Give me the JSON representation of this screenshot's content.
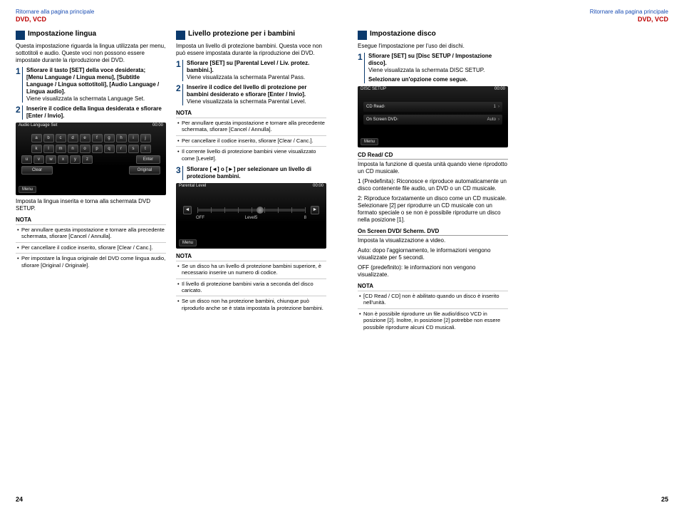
{
  "header": {
    "link": "Ritornare alla pagina principale",
    "category": "DVD, VCD"
  },
  "pagenum_left": "24",
  "pagenum_right": "25",
  "left": {
    "colA": {
      "title": "Impostazione lingua",
      "intro": "Questa impostazione riguarda la lingua utilizzata per menu, sottotitoli e audio. Queste voci non possono essere impostate durante la riproduzione dei DVD.",
      "step1": "Sfiorare il tasto [SET] della voce desiderata;\n[Menu Language / Lingua menu], [Subtitle Language / Lingua sottotitoli], [Audio Language / Lingua audio].",
      "step1b": "Viene visualizzata la schermata Language Set.",
      "step2": "Inserire il codice della lingua desiderata e sfiorare [Enter / Invio].",
      "kbd_title": "Audio Language Set",
      "clock": "00:00",
      "kbd_rows": [
        [
          "a",
          "b",
          "c",
          "d",
          "e",
          "f",
          "g",
          "h",
          "i",
          "j"
        ],
        [
          "k",
          "l",
          "m",
          "n",
          "o",
          "p",
          "q",
          "r",
          "s",
          "t"
        ],
        [
          "u",
          "v",
          "w",
          "x",
          "y",
          "z"
        ]
      ],
      "kbd_enter": "Enter",
      "kbd_clear": "Clear",
      "kbd_orig": "Original",
      "menu": "Menu",
      "after": "Imposta la lingua inserita e torna alla schermata DVD SETUP.",
      "nota": [
        "Per annullare questa impostazione e tornare alla precedente schermata, sfiorare [Cancel / Annulla].",
        "Per cancellare il codice inserito, sfiorare [Clear / Canc.].",
        "Per impostare la lingua originale del DVD come lingua audio, sfiorare [Original / Originale]."
      ]
    },
    "colB": {
      "title": "Livello protezione per i bambini",
      "intro": "Imposta un livello di protezione bambini. Questa voce non può essere impostata durante la riproduzione dei DVD.",
      "step1": "Sfiorare [SET] su [Parental Level / Liv. protez. bambini.].",
      "step1b": "Viene visualizzata la schermata Parental Pass.",
      "step2": "Inserire il codice del livello di protezione per bambini desiderato e sfiorare [Enter / Invio].",
      "step2b": "Viene visualizzata la schermata Parental Level.",
      "nota1": [
        "Per annullare questa impostazione e tornare alla precedente schermata, sfiorare [Cancel / Annulla].",
        "Per cancellare il codice inserito, sfiorare [Clear / Canc.].",
        "Il corrente livello di protezione bambini viene visualizzato come [Level#]."
      ],
      "step3": "Sfiorare [◄] o [►] per selezionare un livello di protezione bambini.",
      "pl_title": "Parental Level",
      "pl_min": "OFF",
      "pl_val": "Level5",
      "pl_max": "8",
      "nota2": [
        "Se un disco ha un livello di protezione bambini superiore, è necessario inserire un numero di codice.",
        "Il livello di protezione bambini varia a seconda del disco caricato.",
        "Se un disco non ha protezione bambini, chiunque può riprodurlo anche se è stata impostata la protezione bambini."
      ]
    }
  },
  "right": {
    "title": "Impostazione disco",
    "intro": "Esegue l'impostazione per l'uso dei dischi.",
    "step1": "Sfiorare [SET] su [Disc SETUP / Impostazione disco].",
    "step1b": "Viene visualizzata la schermata DISC SETUP.",
    "step1c": "Selezionare un'opzione come segue.",
    "shot_title": "DISC SETUP",
    "clock": "00:00",
    "row1": "CD Read",
    "row1v": "1",
    "row2": "On Screen DVD",
    "row2v": "Auto",
    "menu": "Menu",
    "sub1_title": "CD Read/ CD",
    "sub1_body": "Imposta la funzione di questa unità quando viene riprodotto un CD musicale.",
    "sub1_1": "1 (Predefinita): Riconosce e riproduce automaticamente un disco contenente file audio, un DVD o un CD musicale.",
    "sub1_2": "2: Riproduce forzatamente un disco come un CD musicale. Selezionare [2] per riprodurre un CD musicale con un formato speciale o se non è possibile riprodurre un disco nella posizione [1].",
    "sub2_title": "On Screen DVD/ Scherm. DVD",
    "sub2_body": "Imposta la visualizzazione a video.",
    "sub2_auto": "Auto: dopo l'aggiornamento, le informazioni vengono visualizzate per 5 secondi.",
    "sub2_off": "OFF (predefinito): le informazioni non vengono visualizzate.",
    "nota": [
      "[CD Read / CD] non è abilitato quando un disco è inserito nell'unità.",
      "Non è possibile riprodurre un file audio/disco VCD in posizione [2]. Inoltre, in posizione [2] potrebbe non essere possibile riprodurre alcuni CD musicali."
    ]
  }
}
